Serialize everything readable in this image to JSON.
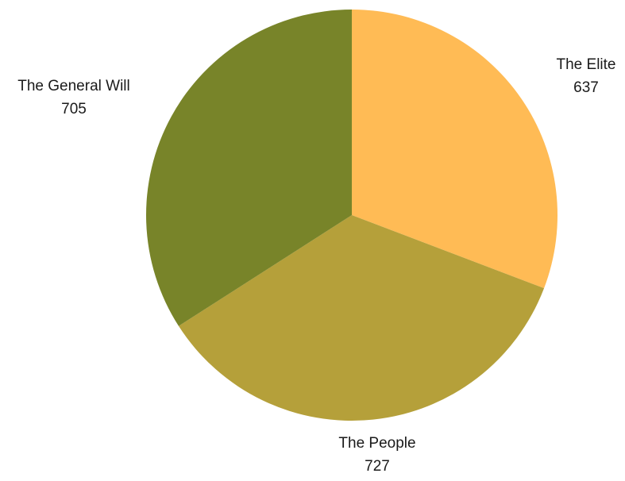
{
  "chart_data": {
    "type": "pie",
    "title": "",
    "slices": [
      {
        "label": "The Elite",
        "value": 637,
        "color": "#FFBB55"
      },
      {
        "label": "The People",
        "value": 727,
        "color": "#B5A03A"
      },
      {
        "label": "The General Will",
        "value": 705,
        "color": "#788429"
      }
    ],
    "start_angle_deg": 0,
    "direction": "clockwise",
    "legend": "none",
    "data_labels": "outside"
  }
}
